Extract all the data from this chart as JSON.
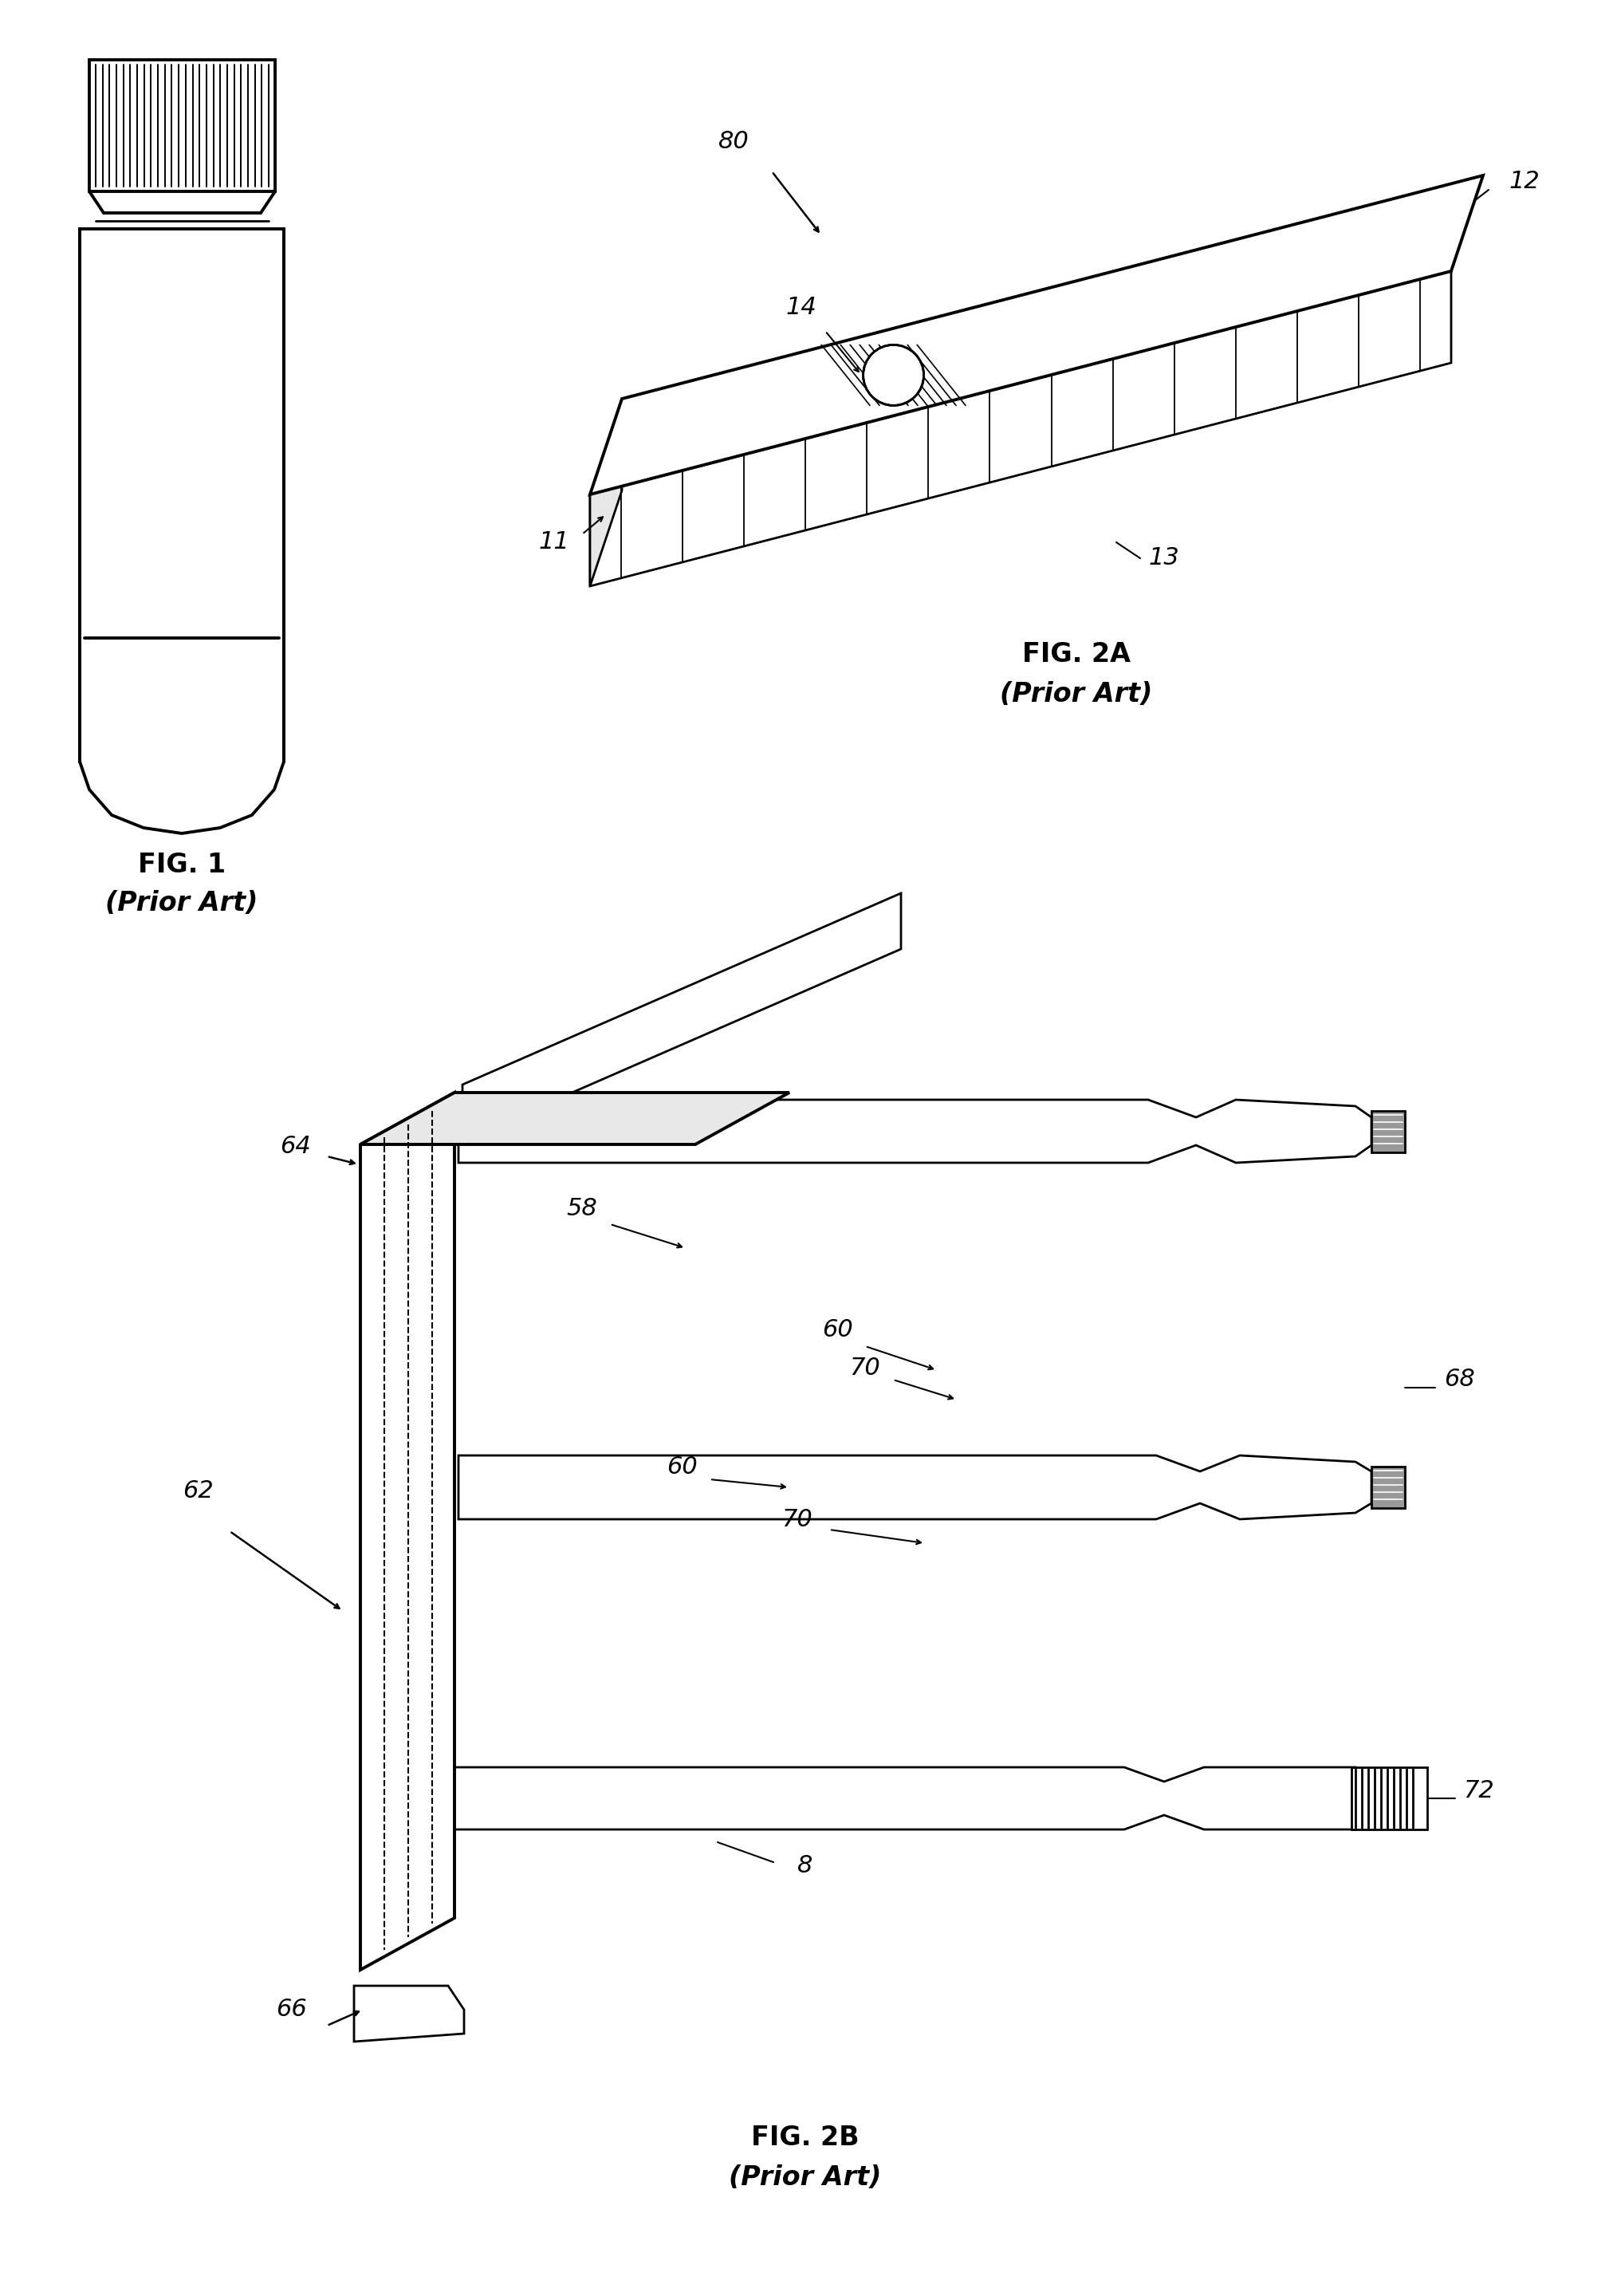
{
  "bg_color": "#ffffff",
  "line_color": "#000000",
  "fig_width": 20.23,
  "fig_height": 28.79,
  "fig1_label": "FIG. 1",
  "fig1_sublabel": "(Prior Art)",
  "fig2a_label": "FIG. 2A",
  "fig2a_sublabel": "(Prior Art)",
  "fig2b_label": "FIG. 2B",
  "fig2b_sublabel": "(Prior Art)",
  "label_fontsize": 24,
  "ref_fontsize": 22
}
